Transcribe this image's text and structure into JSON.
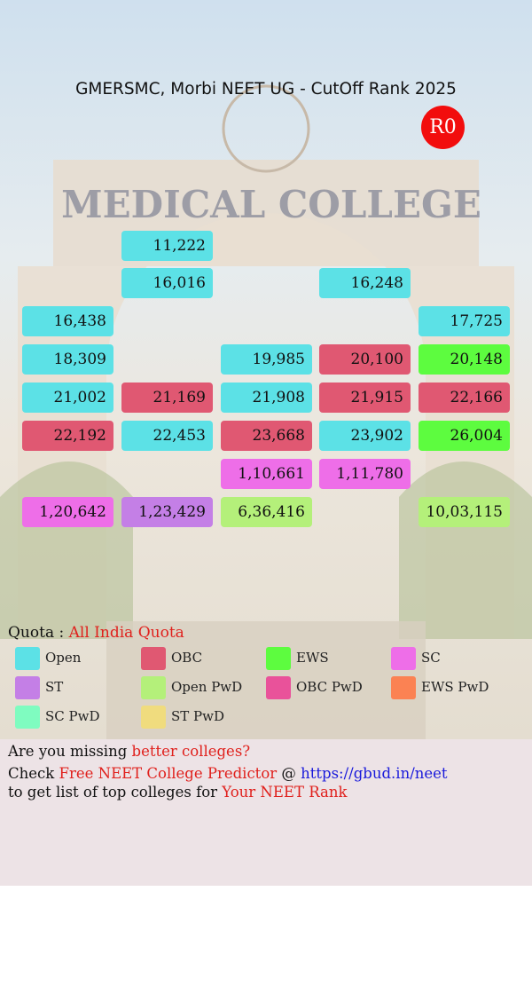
{
  "header": {
    "title": "GMERSMC, Morbi NEET UG - CutOff Rank 2025",
    "round": "R0",
    "background_text": "MEDICAL COLLEGE"
  },
  "boxes": [
    {
      "rank": "11,222",
      "quota": "Open"
    },
    {
      "rank": "16,016",
      "quota": "Open"
    },
    {
      "rank": "16,248",
      "quota": "Open"
    },
    {
      "rank": "16,438",
      "quota": "Open"
    },
    {
      "rank": "17,725",
      "quota": "Open"
    },
    {
      "rank": "18,309",
      "quota": "Open"
    },
    {
      "rank": "19,985",
      "quota": "Open"
    },
    {
      "rank": "20,100",
      "quota": "OBC"
    },
    {
      "rank": "20,148",
      "quota": "EWS"
    },
    {
      "rank": "21,002",
      "quota": "Open"
    },
    {
      "rank": "21,169",
      "quota": "OBC"
    },
    {
      "rank": "21,908",
      "quota": "Open"
    },
    {
      "rank": "21,915",
      "quota": "OBC"
    },
    {
      "rank": "22,166",
      "quota": "OBC"
    },
    {
      "rank": "22,192",
      "quota": "OBC"
    },
    {
      "rank": "22,453",
      "quota": "Open"
    },
    {
      "rank": "23,668",
      "quota": "OBC"
    },
    {
      "rank": "23,902",
      "quota": "Open"
    },
    {
      "rank": "26,004",
      "quota": "EWS"
    },
    {
      "rank": "1,10,661",
      "quota": "SC"
    },
    {
      "rank": "1,11,780",
      "quota": "SC"
    },
    {
      "rank": "1,20,642",
      "quota": "SC"
    },
    {
      "rank": "1,23,429",
      "quota": "ST"
    },
    {
      "rank": "6,36,416",
      "quota": "Open PwD"
    },
    {
      "rank": "10,03,115",
      "quota": "Open PwD"
    }
  ],
  "quota": {
    "label": "Quota :",
    "value": "All India Quota"
  },
  "legend": [
    {
      "label": "Open",
      "color": "#5ce1e6"
    },
    {
      "label": "OBC",
      "color": "#e05872"
    },
    {
      "label": "EWS",
      "color": "#5dfc3f"
    },
    {
      "label": "SC",
      "color": "#ee6ee8"
    },
    {
      "label": "ST",
      "color": "#c47fe6"
    },
    {
      "label": "Open PwD",
      "color": "#b4f07a"
    },
    {
      "label": "OBC PwD",
      "color": "#e9529a"
    },
    {
      "label": "EWS PwD",
      "color": "#fb8253"
    },
    {
      "label": "SC PwD",
      "color": "#7ffcc0"
    },
    {
      "label": "ST PwD",
      "color": "#f0dc7e"
    }
  ],
  "footer": {
    "line1": [
      "Are you missing",
      "better colleges?"
    ],
    "line2": [
      "Check",
      "Free NEET College Predictor",
      "@",
      "https://gbud.in/neet"
    ],
    "line3": [
      "to get list of top colleges for",
      "Your NEET Rank"
    ]
  }
}
